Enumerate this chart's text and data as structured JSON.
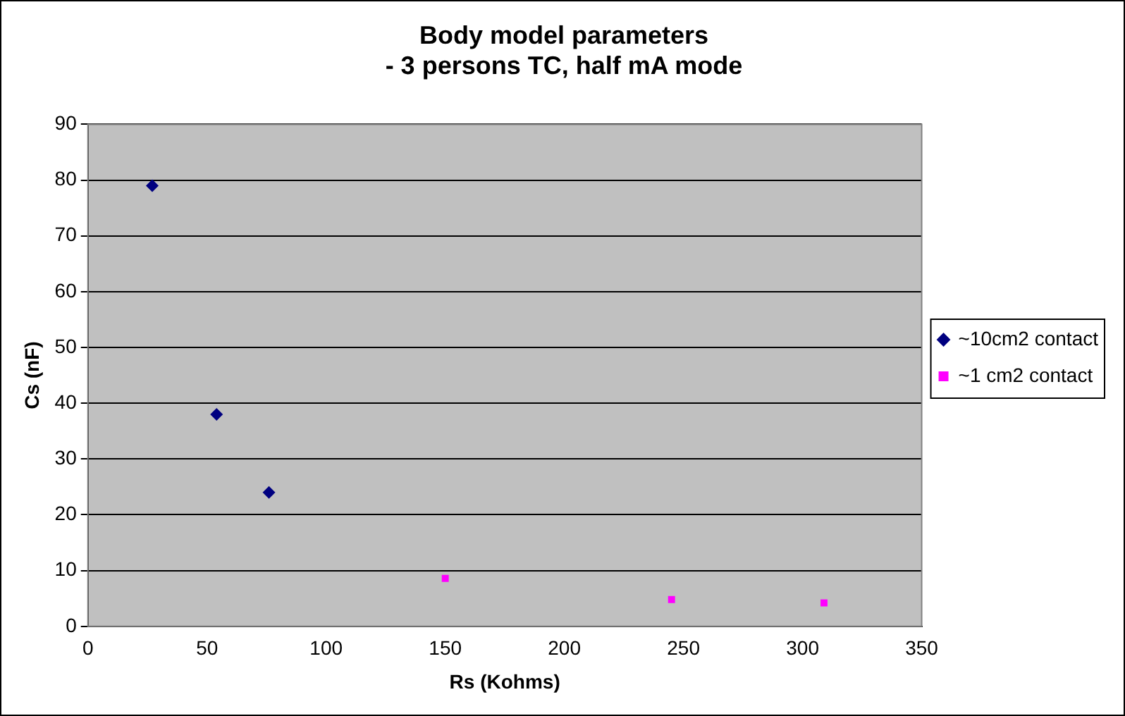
{
  "chart_data": {
    "type": "scatter",
    "title": "Body model parameters\n- 3 persons TC, half mA mode",
    "xlabel": "Rs (Kohms)",
    "ylabel": "Cs (nF)",
    "series": [
      {
        "name": "~10cm2 contact",
        "color": "#000080",
        "marker": "diamond",
        "x": [
          27,
          54,
          76
        ],
        "values": [
          79,
          38,
          24
        ]
      },
      {
        "name": "~1 cm2 contact",
        "color": "#ff00ff",
        "marker": "square",
        "x": [
          150,
          245,
          309
        ],
        "values": [
          8.6,
          4.8,
          4.2
        ]
      }
    ],
    "xlim": [
      0,
      350
    ],
    "xticks": [
      0,
      50,
      100,
      150,
      200,
      250,
      300,
      350
    ],
    "ylim": [
      0,
      90
    ],
    "yticks": [
      0,
      10,
      20,
      30,
      40,
      50,
      60,
      70,
      80,
      90
    ],
    "grid": "y",
    "legend": "right"
  }
}
